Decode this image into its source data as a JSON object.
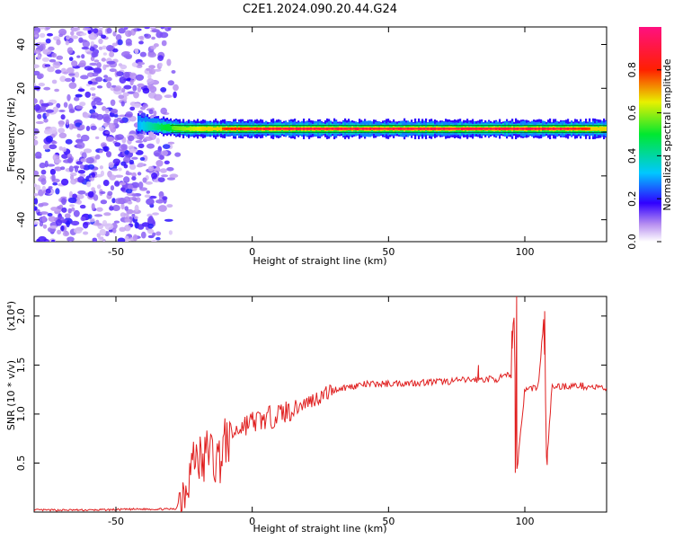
{
  "title": "C2E1.2024.090.20.44.G24",
  "chart_data": [
    {
      "type": "heatmap",
      "xlabel": "Height of straight line (km)",
      "ylabel": "Frequency (Hz)",
      "xlim": [
        -80,
        130
      ],
      "ylim": [
        -50,
        48
      ],
      "x_ticks": [
        -50,
        0,
        50,
        100
      ],
      "y_ticks": [
        -40,
        -20,
        0,
        20,
        40
      ],
      "colorbar": {
        "label": "Normalized spectral amplitude",
        "range": [
          0,
          1
        ],
        "ticks": [
          0.0,
          0.2,
          0.4,
          0.6,
          0.8
        ],
        "tick_labels": [
          "0.0",
          "0.2",
          "0.4",
          "0.6",
          "0.8"
        ]
      },
      "noise_region_x": [
        -80,
        -30
      ],
      "signal_band": {
        "frequency_hz": 1.5,
        "x_start": -42,
        "x_end": 130,
        "intensity_points": [
          [
            -42,
            0.3
          ],
          [
            -30,
            0.55
          ],
          [
            -20,
            0.65
          ],
          [
            -10,
            0.8
          ],
          [
            0,
            0.85
          ],
          [
            20,
            0.95
          ],
          [
            60,
            0.98
          ],
          [
            90,
            0.9
          ],
          [
            110,
            0.95
          ],
          [
            130,
            0.7
          ]
        ]
      }
    },
    {
      "type": "line",
      "xlabel": "Height of straight line (km)",
      "ylabel": "SNR (10 * v/v)",
      "y_multiplier": "(x10⁴)",
      "xlim": [
        -80,
        130
      ],
      "ylim": [
        0,
        2.2
      ],
      "x_ticks": [
        -50,
        0,
        50,
        100
      ],
      "y_ticks": [
        0.5,
        1.0,
        1.5,
        2.0
      ],
      "y_tick_labels": [
        "0.5",
        "1.0",
        "1.5",
        "2.0"
      ],
      "series": [
        {
          "color": "#e02020",
          "x": [
            -80,
            -60,
            -40,
            -28,
            -25,
            -22,
            -20,
            -18,
            -16,
            -14,
            -12,
            -10,
            -8,
            -6,
            -4,
            -2,
            0,
            5,
            10,
            15,
            20,
            25,
            30,
            40,
            50,
            60,
            70,
            80,
            90,
            95,
            96,
            97,
            100,
            105,
            107,
            108,
            110,
            120,
            130
          ],
          "y": [
            0.02,
            0.02,
            0.03,
            0.03,
            0.25,
            0.5,
            0.6,
            0.45,
            0.7,
            0.5,
            0.55,
            0.7,
            0.78,
            0.82,
            0.88,
            0.9,
            0.92,
            0.95,
            1.0,
            1.05,
            1.12,
            1.18,
            1.25,
            1.3,
            1.31,
            1.32,
            1.33,
            1.35,
            1.36,
            1.4,
            2.1,
            0.4,
            1.25,
            1.28,
            2.0,
            0.48,
            1.28,
            1.29,
            1.26
          ]
        }
      ]
    }
  ]
}
